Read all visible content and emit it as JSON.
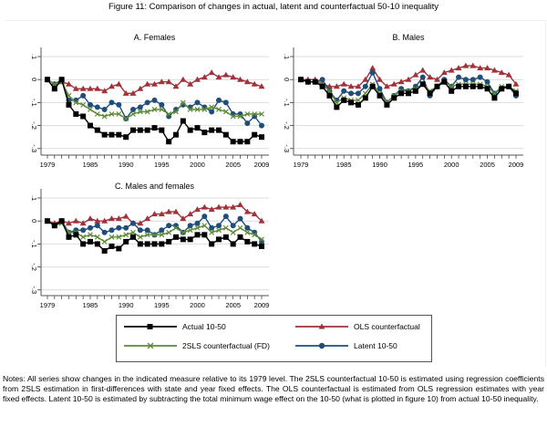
{
  "figure_title": "Figure 11: Comparison of changes in actual, latent and counterfactual 50-10 inequality",
  "legend": [
    {
      "label": "Actual 10-50",
      "color": "#000000",
      "marker": "square"
    },
    {
      "label": "OLS counterfactual",
      "color": "#a0323a",
      "marker": "triangle"
    },
    {
      "label": "2SLS counterfactual (FD)",
      "color": "#5e8a36",
      "marker": "x"
    },
    {
      "label": "Latent 10-50",
      "color": "#1f4e7a",
      "marker": "circle"
    }
  ],
  "notes": "Notes: All series show changes in the indicated measure relative to its 1979 level. The 2SLS counterfactual 10-50 is estimated using regression coefficients from 2SLS estimation in first-differences with state and year fixed effects. The OLS counterfactual is estimated from OLS regression estimates with year fixed effects. Latent 10-50 is estimated by subtracting the total minimum wage effect on the 10-50 (what is plotted in figure 10) from actual 10-50 inequality.",
  "chart_data": [
    {
      "type": "line",
      "title": "A. Females",
      "xlabel": "",
      "ylabel": "",
      "x": [
        1979,
        1980,
        1981,
        1982,
        1983,
        1984,
        1985,
        1986,
        1987,
        1988,
        1989,
        1990,
        1991,
        1992,
        1993,
        1994,
        1995,
        1996,
        1997,
        1998,
        1999,
        2000,
        2001,
        2002,
        2003,
        2004,
        2005,
        2006,
        2007,
        2008,
        2009
      ],
      "xticks": [
        "1979",
        "1985",
        "1990",
        "1995",
        "2000",
        "2005",
        "2009"
      ],
      "yticks": [
        ".1",
        "0",
        "-.1",
        "-.2",
        "-.3"
      ],
      "ylim": [
        -0.33,
        0.13
      ],
      "grid": true,
      "series": [
        {
          "name": "OLS counterfactual",
          "values": [
            0,
            -0.02,
            -0.01,
            -0.02,
            -0.04,
            -0.04,
            -0.04,
            -0.04,
            -0.05,
            -0.03,
            -0.02,
            -0.06,
            -0.06,
            -0.04,
            -0.02,
            -0.02,
            -0.01,
            -0.01,
            -0.03,
            0.0,
            -0.02,
            0.0,
            0.01,
            0.03,
            0.01,
            0.02,
            0.01,
            0.0,
            -0.01,
            -0.02,
            -0.03
          ]
        },
        {
          "name": "Latent 10-50",
          "values": [
            0,
            -0.02,
            0.0,
            -0.09,
            -0.09,
            -0.07,
            -0.11,
            -0.12,
            -0.13,
            -0.1,
            -0.11,
            -0.17,
            -0.13,
            -0.12,
            -0.1,
            -0.09,
            -0.11,
            -0.16,
            -0.13,
            -0.11,
            -0.12,
            -0.1,
            -0.12,
            -0.14,
            -0.09,
            -0.1,
            -0.15,
            -0.15,
            -0.19,
            -0.16,
            -0.2
          ]
        },
        {
          "name": "2SLS counterfactual (FD)",
          "values": [
            0,
            -0.02,
            -0.01,
            -0.07,
            -0.1,
            -0.11,
            -0.13,
            -0.15,
            -0.16,
            -0.15,
            -0.15,
            -0.17,
            -0.15,
            -0.14,
            -0.14,
            -0.13,
            -0.13,
            -0.15,
            -0.14,
            -0.1,
            -0.13,
            -0.13,
            -0.13,
            -0.12,
            -0.13,
            -0.14,
            -0.16,
            -0.16,
            -0.15,
            -0.15,
            -0.15
          ]
        },
        {
          "name": "Actual 10-50",
          "values": [
            0,
            -0.04,
            0.0,
            -0.11,
            -0.15,
            -0.16,
            -0.2,
            -0.22,
            -0.24,
            -0.24,
            -0.24,
            -0.25,
            -0.22,
            -0.22,
            -0.22,
            -0.21,
            -0.22,
            -0.27,
            -0.24,
            -0.18,
            -0.22,
            -0.21,
            -0.23,
            -0.22,
            -0.22,
            -0.24,
            -0.27,
            -0.27,
            -0.27,
            -0.24,
            -0.25
          ]
        }
      ]
    },
    {
      "type": "line",
      "title": "B. Males",
      "xlabel": "",
      "ylabel": "",
      "x": [
        1979,
        1980,
        1981,
        1982,
        1983,
        1984,
        1985,
        1986,
        1987,
        1988,
        1989,
        1990,
        1991,
        1992,
        1993,
        1994,
        1995,
        1996,
        1997,
        1998,
        1999,
        2000,
        2001,
        2002,
        2003,
        2004,
        2005,
        2006,
        2007,
        2008,
        2009
      ],
      "xticks": [
        "1979",
        "1985",
        "1990",
        "1995",
        "2000",
        "2005",
        "2009"
      ],
      "yticks": [
        ".1",
        "0",
        "-.1",
        "-.2",
        "-.3"
      ],
      "ylim": [
        -0.33,
        0.13
      ],
      "grid": true,
      "series": [
        {
          "name": "OLS counterfactual",
          "values": [
            0,
            0.0,
            0.0,
            -0.02,
            -0.03,
            -0.03,
            -0.02,
            -0.03,
            -0.03,
            0.0,
            0.05,
            0.0,
            -0.03,
            -0.02,
            -0.01,
            0.0,
            0.02,
            0.04,
            0.01,
            0.0,
            0.03,
            0.04,
            0.05,
            0.06,
            0.06,
            0.05,
            0.05,
            0.04,
            0.03,
            0.02,
            -0.02
          ]
        },
        {
          "name": "Latent 10-50",
          "values": [
            0,
            -0.01,
            -0.01,
            0.0,
            -0.05,
            -0.09,
            -0.05,
            -0.06,
            -0.06,
            -0.03,
            0.03,
            -0.04,
            -0.1,
            -0.07,
            -0.04,
            -0.05,
            -0.03,
            0.01,
            -0.07,
            -0.03,
            0.0,
            -0.03,
            0.01,
            0.0,
            0.0,
            0.01,
            -0.01,
            -0.06,
            -0.04,
            -0.03,
            -0.07
          ]
        },
        {
          "name": "2SLS counterfactual (FD)",
          "values": [
            0,
            -0.01,
            -0.01,
            -0.02,
            -0.05,
            -0.1,
            -0.08,
            -0.09,
            -0.09,
            -0.06,
            -0.02,
            -0.06,
            -0.1,
            -0.07,
            -0.05,
            -0.05,
            -0.04,
            -0.02,
            -0.05,
            -0.03,
            -0.01,
            -0.03,
            -0.02,
            -0.02,
            -0.02,
            -0.02,
            -0.03,
            -0.06,
            -0.03,
            -0.03,
            -0.05
          ]
        },
        {
          "name": "Actual 10-50",
          "values": [
            0,
            -0.01,
            -0.01,
            -0.03,
            -0.07,
            -0.12,
            -0.09,
            -0.1,
            -0.11,
            -0.08,
            -0.03,
            -0.07,
            -0.11,
            -0.08,
            -0.06,
            -0.06,
            -0.05,
            -0.02,
            -0.06,
            -0.03,
            -0.01,
            -0.05,
            -0.03,
            -0.03,
            -0.03,
            -0.03,
            -0.04,
            -0.08,
            -0.04,
            -0.03,
            -0.06
          ]
        }
      ]
    },
    {
      "type": "line",
      "title": "C. Males and females",
      "xlabel": "",
      "ylabel": "",
      "x": [
        1979,
        1980,
        1981,
        1982,
        1983,
        1984,
        1985,
        1986,
        1987,
        1988,
        1989,
        1990,
        1991,
        1992,
        1993,
        1994,
        1995,
        1996,
        1997,
        1998,
        1999,
        2000,
        2001,
        2002,
        2003,
        2004,
        2005,
        2006,
        2007,
        2008,
        2009
      ],
      "xticks": [
        "1979",
        "1985",
        "1990",
        "1995",
        "2000",
        "2005",
        "2009"
      ],
      "yticks": [
        ".1",
        "0",
        "-.1",
        "-.2",
        "-.3"
      ],
      "ylim": [
        -0.33,
        0.13
      ],
      "grid": true,
      "series": [
        {
          "name": "OLS counterfactual",
          "values": [
            0,
            -0.01,
            0.0,
            -0.01,
            0.0,
            -0.01,
            0.01,
            0.0,
            0.0,
            0.01,
            0.01,
            0.02,
            -0.01,
            -0.01,
            0.01,
            0.03,
            0.03,
            0.04,
            0.04,
            0.01,
            0.03,
            0.05,
            0.06,
            0.05,
            0.06,
            0.06,
            0.06,
            0.07,
            0.04,
            0.03,
            0.0
          ]
        },
        {
          "name": "Latent 10-50",
          "values": [
            0,
            -0.02,
            0.0,
            -0.05,
            -0.04,
            -0.04,
            -0.03,
            -0.02,
            -0.05,
            -0.04,
            -0.03,
            -0.03,
            -0.01,
            -0.04,
            -0.04,
            -0.06,
            -0.04,
            -0.02,
            -0.02,
            -0.05,
            -0.02,
            -0.01,
            0.02,
            -0.03,
            -0.02,
            0.02,
            -0.02,
            0.01,
            -0.03,
            -0.05,
            -0.09
          ]
        },
        {
          "name": "2SLS counterfactual (FD)",
          "values": [
            0,
            -0.02,
            -0.01,
            -0.05,
            -0.05,
            -0.07,
            -0.06,
            -0.07,
            -0.09,
            -0.07,
            -0.07,
            -0.06,
            -0.05,
            -0.07,
            -0.06,
            -0.06,
            -0.06,
            -0.05,
            -0.03,
            -0.05,
            -0.04,
            -0.03,
            -0.02,
            -0.05,
            -0.04,
            -0.03,
            -0.05,
            -0.03,
            -0.05,
            -0.06,
            -0.08
          ]
        },
        {
          "name": "Actual 10-50",
          "values": [
            0,
            -0.02,
            0.0,
            -0.07,
            -0.06,
            -0.1,
            -0.09,
            -0.1,
            -0.13,
            -0.11,
            -0.12,
            -0.09,
            -0.07,
            -0.1,
            -0.1,
            -0.1,
            -0.1,
            -0.09,
            -0.07,
            -0.08,
            -0.08,
            -0.06,
            -0.06,
            -0.1,
            -0.08,
            -0.07,
            -0.1,
            -0.07,
            -0.09,
            -0.1,
            -0.11
          ]
        }
      ]
    }
  ]
}
